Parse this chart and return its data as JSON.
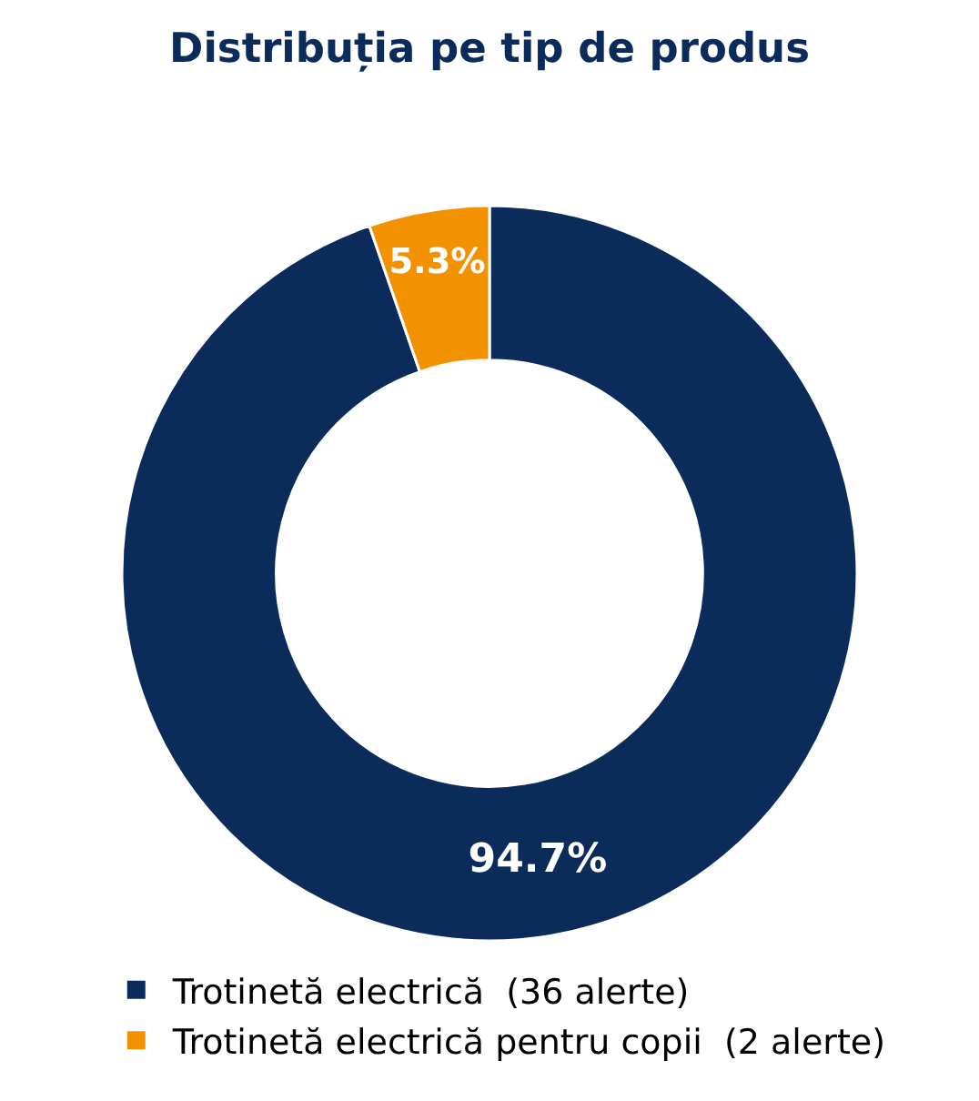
{
  "chart_data": {
    "type": "donut",
    "title": "Distribuția pe tip de produs",
    "categories": [
      "Trotinetă electrică  (36 alerte)",
      "Trotinetă electrică pentru copii  (2 alerte)"
    ],
    "values": [
      94.7,
      5.3
    ],
    "colors": [
      "#0b2c5a",
      "#f39200"
    ],
    "value_labels": [
      "94.7%",
      "5.3%"
    ],
    "legend": "bottom"
  }
}
